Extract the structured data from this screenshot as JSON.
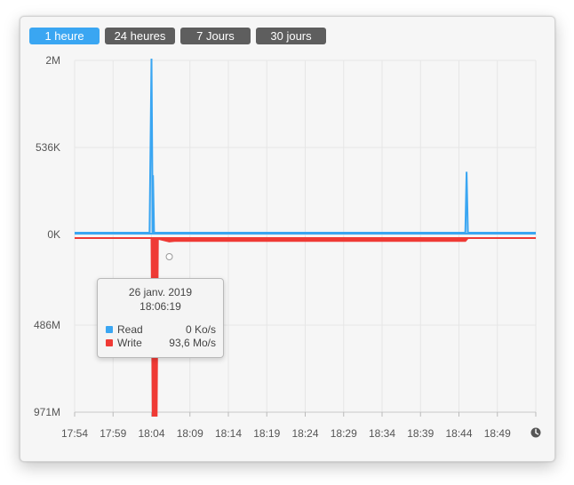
{
  "tabs": [
    {
      "label": "1 heure",
      "active": true
    },
    {
      "label": "24 heures",
      "active": false
    },
    {
      "label": "7 Jours",
      "active": false
    },
    {
      "label": "30 jours",
      "active": false
    }
  ],
  "tooltip": {
    "date": "26 janv. 2019",
    "time": "18:06:19",
    "rows": [
      {
        "name": "Read",
        "value": "0 Ko/s",
        "color": "#3aa6f2"
      },
      {
        "name": "Write",
        "value": "93,6 Mo/s",
        "color": "#ef3a35"
      }
    ]
  },
  "clock_icon": "clock-icon",
  "chart_data": {
    "type": "area",
    "x_ticks": [
      "17:54",
      "17:59",
      "18:04",
      "18:09",
      "18:14",
      "18:19",
      "18:24",
      "18:29",
      "18:34",
      "18:39",
      "18:44",
      "18:49"
    ],
    "y_ticks_top": [
      "2M",
      "536K",
      "0K"
    ],
    "y_ticks_bottom": [
      "486M",
      "971M"
    ],
    "series": [
      {
        "name": "Read",
        "color": "#3aa6f2",
        "direction": "up",
        "points": [
          [
            "17:54:00",
            0
          ],
          [
            "18:03:45",
            0
          ],
          [
            "18:04:00",
            2000
          ],
          [
            "18:04:10",
            0
          ],
          [
            "18:04:12",
            660
          ],
          [
            "18:04:20",
            0
          ],
          [
            "18:44:50",
            0
          ],
          [
            "18:45:00",
            700
          ],
          [
            "18:45:10",
            0
          ],
          [
            "18:54:00",
            0
          ]
        ]
      },
      {
        "name": "Write",
        "color": "#ef3a35",
        "direction": "down",
        "points": [
          [
            "17:54:00",
            0
          ],
          [
            "18:04:00",
            0
          ],
          [
            "18:04:10",
            971
          ],
          [
            "18:04:40",
            971
          ],
          [
            "18:04:50",
            20
          ],
          [
            "18:06:19",
            93.6
          ],
          [
            "18:07:00",
            80
          ],
          [
            "18:44:50",
            80
          ],
          [
            "18:45:10",
            0
          ],
          [
            "18:54:00",
            0
          ]
        ]
      }
    ],
    "units_top": "Ko/s",
    "units_bottom": "Mo/s"
  }
}
